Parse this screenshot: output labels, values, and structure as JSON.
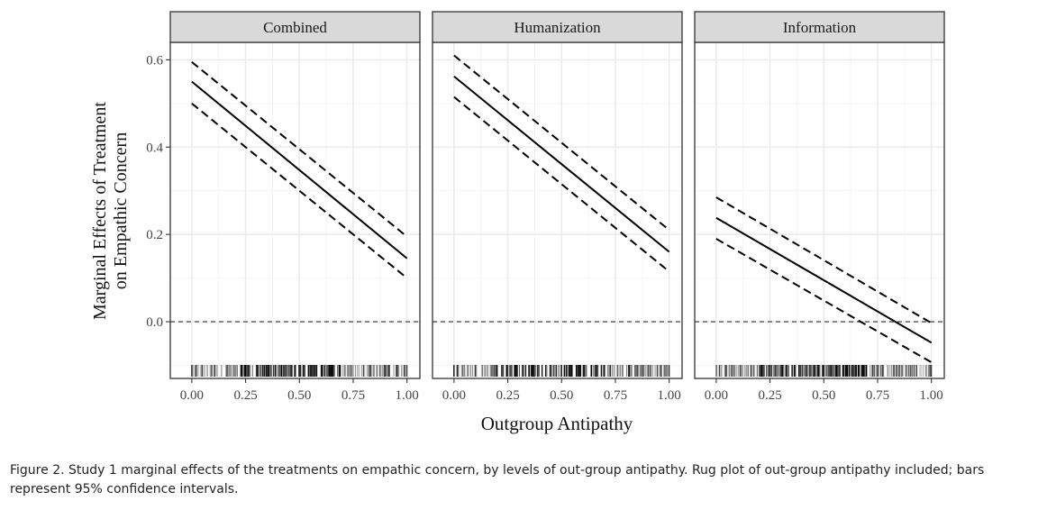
{
  "chart_data": {
    "type": "line",
    "facet_by": "treatment",
    "xlabel": "Outgroup Antipathy",
    "ylabel_lines": [
      "Marginal Effects of Treatment",
      "on Empathic Concern"
    ],
    "xlim": [
      -0.1,
      1.06
    ],
    "ylim": [
      -0.13,
      0.64
    ],
    "x_ticks": [
      0,
      0.25,
      0.5,
      0.75,
      1
    ],
    "x_tick_labels": [
      "0.00",
      "0.25",
      "0.50",
      "0.75",
      "1.00"
    ],
    "y_ticks": [
      0,
      0.2,
      0.4,
      0.6
    ],
    "y_tick_labels": [
      "0.0",
      "0.2",
      "0.4",
      "0.6"
    ],
    "reference_line_y": 0,
    "grid": true,
    "rug": true,
    "panels": [
      {
        "title": "Combined",
        "x": [
          0,
          1
        ],
        "estimate": [
          0.55,
          0.145
        ],
        "ci_upper": [
          0.595,
          0.195
        ],
        "ci_lower": [
          0.5,
          0.1
        ]
      },
      {
        "title": "Humanization",
        "x": [
          0,
          1
        ],
        "estimate": [
          0.562,
          0.16
        ],
        "ci_upper": [
          0.61,
          0.21
        ],
        "ci_lower": [
          0.515,
          0.115
        ]
      },
      {
        "title": "Information",
        "x": [
          0,
          1
        ],
        "estimate": [
          0.238,
          -0.048
        ],
        "ci_upper": [
          0.285,
          -0.003
        ],
        "ci_lower": [
          0.19,
          -0.093
        ]
      }
    ]
  },
  "caption": "Figure 2. Study 1 marginal effects of the treatments on empathic concern, by levels of out-group antipathy. Rug plot of out-group antipathy included; bars represent 95% confidence intervals.",
  "colors": {
    "strip_fill": "#d9d9d9",
    "panel_border": "#333333",
    "grid_major": "#ebebeb",
    "grid_minor": "#f4f4f4",
    "line": "#000000"
  }
}
